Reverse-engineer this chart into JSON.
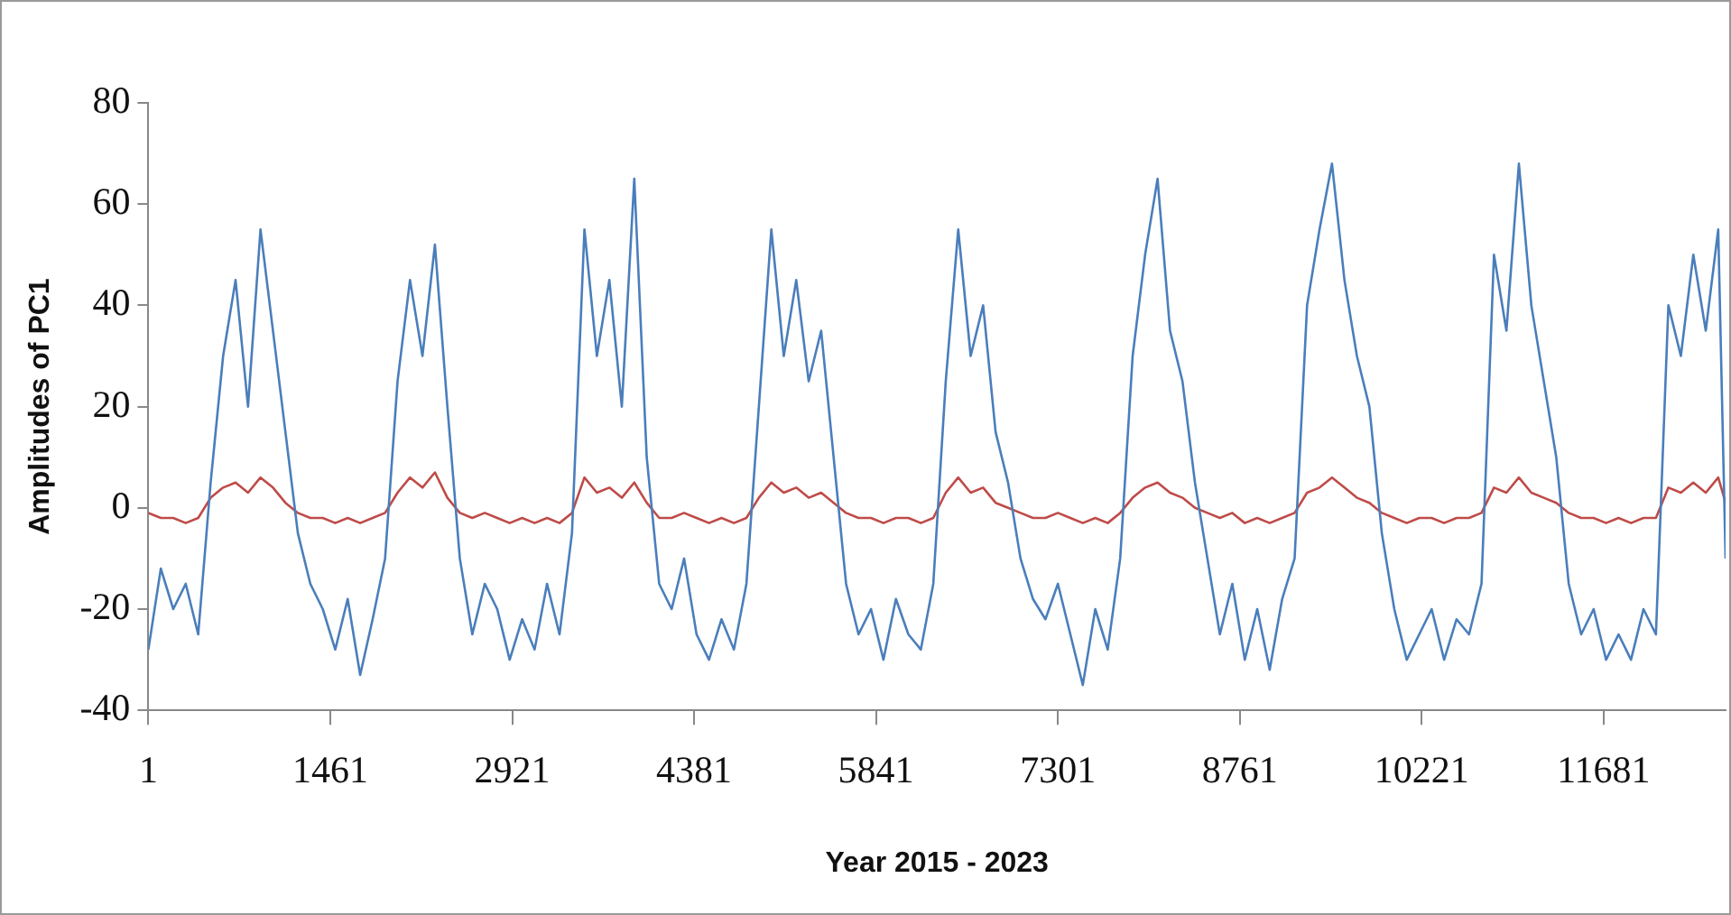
{
  "chart_data": {
    "type": "line",
    "xlabel": "Year 2015 - 2023",
    "ylabel": "Amplitudes of PC1",
    "x": [
      1,
      101,
      201,
      301,
      401,
      501,
      601,
      701,
      801,
      901,
      1001,
      1101,
      1201,
      1301,
      1401,
      1501,
      1601,
      1701,
      1801,
      1901,
      2001,
      2101,
      2201,
      2301,
      2401,
      2501,
      2601,
      2701,
      2801,
      2901,
      3001,
      3101,
      3201,
      3301,
      3401,
      3501,
      3601,
      3701,
      3801,
      3901,
      4001,
      4101,
      4201,
      4301,
      4401,
      4501,
      4601,
      4701,
      4801,
      4901,
      5001,
      5101,
      5201,
      5301,
      5401,
      5501,
      5601,
      5701,
      5801,
      5901,
      6001,
      6101,
      6201,
      6301,
      6401,
      6501,
      6601,
      6701,
      6801,
      6901,
      7001,
      7101,
      7201,
      7301,
      7401,
      7501,
      7601,
      7701,
      7801,
      7901,
      8001,
      8101,
      8201,
      8301,
      8401,
      8501,
      8601,
      8701,
      8801,
      8901,
      9001,
      9101,
      9201,
      9301,
      9401,
      9501,
      9601,
      9701,
      9801,
      9901,
      10001,
      10101,
      10201,
      10301,
      10401,
      10501,
      10601,
      10701,
      10801,
      10901,
      11001,
      11101,
      11201,
      11301,
      11401,
      11501,
      11601,
      11701,
      11801,
      11901,
      12001,
      12101,
      12201,
      12301,
      12401,
      12501,
      12601,
      12660
    ],
    "series": [
      {
        "color": "#4a7ebb",
        "values": [
          -28,
          -12,
          -20,
          -15,
          -25,
          5,
          30,
          45,
          20,
          55,
          35,
          15,
          -5,
          -15,
          -20,
          -28,
          -18,
          -33,
          -22,
          -10,
          25,
          45,
          30,
          52,
          20,
          -10,
          -25,
          -15,
          -20,
          -30,
          -22,
          -28,
          -15,
          -25,
          -5,
          55,
          30,
          45,
          20,
          65,
          10,
          -15,
          -20,
          -10,
          -25,
          -30,
          -22,
          -28,
          -15,
          20,
          55,
          30,
          45,
          25,
          35,
          10,
          -15,
          -25,
          -20,
          -30,
          -18,
          -25,
          -28,
          -15,
          25,
          55,
          30,
          40,
          15,
          5,
          -10,
          -18,
          -22,
          -15,
          -25,
          -35,
          -20,
          -28,
          -10,
          30,
          50,
          65,
          35,
          25,
          5,
          -10,
          -25,
          -15,
          -30,
          -20,
          -32,
          -18,
          -10,
          40,
          55,
          68,
          45,
          30,
          20,
          -5,
          -20,
          -30,
          -25,
          -20,
          -30,
          -22,
          -25,
          -15,
          50,
          35,
          68,
          40,
          25,
          10,
          -15,
          -25,
          -20,
          -30,
          -25,
          -30,
          -20,
          -25,
          40,
          30,
          50,
          35,
          55,
          -10
        ]
      },
      {
        "color": "#be4b48",
        "values": [
          -1,
          -2,
          -2,
          -3,
          -2,
          2,
          4,
          5,
          3,
          6,
          4,
          1,
          -1,
          -2,
          -2,
          -3,
          -2,
          -3,
          -2,
          -1,
          3,
          6,
          4,
          7,
          2,
          -1,
          -2,
          -1,
          -2,
          -3,
          -2,
          -3,
          -2,
          -3,
          -1,
          6,
          3,
          4,
          2,
          5,
          1,
          -2,
          -2,
          -1,
          -2,
          -3,
          -2,
          -3,
          -2,
          2,
          5,
          3,
          4,
          2,
          3,
          1,
          -1,
          -2,
          -2,
          -3,
          -2,
          -2,
          -3,
          -2,
          3,
          6,
          3,
          4,
          1,
          0,
          -1,
          -2,
          -2,
          -1,
          -2,
          -3,
          -2,
          -3,
          -1,
          2,
          4,
          5,
          3,
          2,
          0,
          -1,
          -2,
          -1,
          -3,
          -2,
          -3,
          -2,
          -1,
          3,
          4,
          6,
          4,
          2,
          1,
          -1,
          -2,
          -3,
          -2,
          -2,
          -3,
          -2,
          -2,
          -1,
          4,
          3,
          6,
          3,
          2,
          1,
          -1,
          -2,
          -2,
          -3,
          -2,
          -3,
          -2,
          -2,
          4,
          3,
          5,
          3,
          6,
          1
        ]
      }
    ],
    "xlim": [
      1,
      12660
    ],
    "xticks": [
      1,
      1461,
      2921,
      4381,
      5841,
      7301,
      8761,
      10221,
      11681
    ],
    "ylim": [
      -40,
      80
    ],
    "yticks": [
      -40,
      -20,
      0,
      20,
      40,
      60,
      80
    ]
  }
}
